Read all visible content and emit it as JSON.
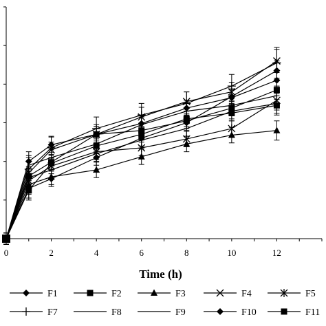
{
  "chart_data": {
    "type": "line",
    "title": "",
    "xlabel": "Time (h)",
    "ylabel": "",
    "x": [
      0,
      1,
      2,
      4,
      6,
      8,
      10,
      12
    ],
    "xticks": [
      "0",
      "2",
      "4",
      "6",
      "8",
      "10",
      "12"
    ],
    "xlim": [
      0,
      14
    ],
    "ylim": [
      0,
      6
    ],
    "grid": false,
    "legend": "bottom",
    "series": [
      {
        "name": "F1",
        "marker": "diamond",
        "values": [
          0,
          2.0,
          2.43,
          2.7,
          2.98,
          3.38,
          3.65,
          4.1
        ],
        "err": [
          0.15,
          0.25,
          0.2,
          0.2,
          0.2,
          0.2,
          0.2,
          0.25
        ]
      },
      {
        "name": "F2",
        "marker": "square",
        "values": [
          0,
          1.62,
          1.98,
          2.7,
          2.8,
          3.05,
          3.38,
          3.85
        ],
        "err": [
          0.15,
          0.25,
          0.2,
          0.2,
          0.2,
          0.2,
          0.2,
          0.25
        ]
      },
      {
        "name": "F3",
        "marker": "triangle",
        "values": [
          0,
          1.4,
          1.6,
          1.78,
          2.12,
          2.45,
          2.68,
          2.8
        ],
        "err": [
          0.15,
          0.25,
          0.2,
          0.2,
          0.2,
          0.2,
          0.2,
          0.25
        ]
      },
      {
        "name": "F4",
        "marker": "x",
        "values": [
          0,
          1.7,
          2.3,
          2.7,
          3.15,
          3.55,
          3.8,
          4.6
        ],
        "err": [
          0.15,
          0.3,
          0.2,
          0.25,
          0.25,
          0.25,
          0.25,
          0.3
        ]
      },
      {
        "name": "F5",
        "marker": "star",
        "values": [
          0,
          1.5,
          1.88,
          2.25,
          2.35,
          2.58,
          2.85,
          3.58
        ],
        "err": [
          0.15,
          0.25,
          0.2,
          0.2,
          0.2,
          0.2,
          0.2,
          0.25
        ]
      },
      {
        "name": "F7",
        "marker": "plus",
        "values": [
          0,
          1.8,
          2.35,
          2.85,
          3.2,
          3.5,
          3.95,
          4.55
        ],
        "err": [
          0.15,
          0.3,
          0.3,
          0.3,
          0.3,
          0.3,
          0.3,
          0.4
        ]
      },
      {
        "name": "F8",
        "marker": "none",
        "values": [
          0,
          1.9,
          2.1,
          2.45,
          2.95,
          3.3,
          3.45,
          3.7
        ],
        "err": [
          0.15,
          0.25,
          0.2,
          0.2,
          0.2,
          0.2,
          0.2,
          0.25
        ]
      },
      {
        "name": "F9",
        "marker": "none",
        "values": [
          0,
          1.58,
          1.78,
          2.2,
          2.55,
          2.85,
          3.3,
          3.5
        ],
        "err": [
          0.15,
          0.25,
          0.2,
          0.2,
          0.2,
          0.2,
          0.2,
          0.25
        ]
      },
      {
        "name": "F10",
        "marker": "diamond",
        "values": [
          0,
          1.3,
          1.55,
          2.1,
          2.6,
          3.0,
          3.68,
          4.35
        ],
        "err": [
          0.15,
          0.25,
          0.2,
          0.2,
          0.2,
          0.2,
          0.2,
          0.25
        ]
      },
      {
        "name": "F11",
        "marker": "square",
        "values": [
          0,
          1.25,
          1.95,
          2.4,
          2.7,
          3.1,
          3.25,
          3.45
        ],
        "err": [
          0.15,
          0.25,
          0.2,
          0.2,
          0.2,
          0.2,
          0.2,
          0.25
        ]
      }
    ]
  }
}
